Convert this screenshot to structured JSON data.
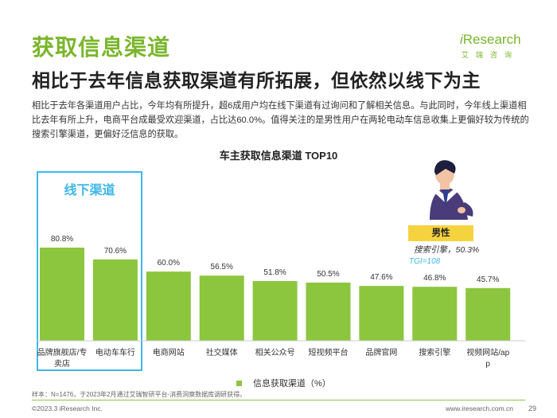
{
  "header": {
    "title": "获取信息渠道",
    "subtitle": "相比于去年信息获取渠道有所拓展，但依然以线下为主",
    "body": "相比于去年各渠道用户占比，今年均有所提升，超6成用户均在线下渠道有过询问和了解相关信息。与此同时，今年线上渠道相比去年有所上升，电商平台成最受欢迎渠道，占比达60.0%。值得关注的是男性用户在两轮电动车信息收集上更偏好较为传统的搜索引擎渠道，更偏好泛信息的获取。"
  },
  "logo": {
    "i_part": "i",
    "word_part": "Research",
    "chinese": "艾瑞咨询"
  },
  "callouts": {
    "offline_label": "线下渠道",
    "male_label": "男性",
    "male_stat": "搜索引擎，50.3%",
    "male_tgi": "TGI=108"
  },
  "footer": {
    "sample_note": "样本：N=1476，于2023年2月通过艾瑞智研平台-消费洞察数据库调研获得。",
    "copyright": "©2023.3 iResearch Inc.",
    "website": "www.iresearch.com.cn",
    "page_number": "29"
  },
  "colors": {
    "bar": "#8cc63e",
    "title_green": "#7ab62b",
    "highlight_blue": "#3fb8e8",
    "male_yellow": "#f5d33f"
  },
  "chart_data": {
    "type": "bar",
    "title": "车主获取信息渠道 TOP10",
    "categories": [
      "品牌旗舰店/专卖店",
      "电动车车行",
      "电商网站",
      "社交媒体",
      "相关公众号",
      "短视频平台",
      "品牌官网",
      "搜索引擎",
      "视频网站/app"
    ],
    "values": [
      80.8,
      70.6,
      60.0,
      56.5,
      51.8,
      50.5,
      47.6,
      46.8,
      45.7
    ],
    "value_labels": [
      "80.8%",
      "70.6%",
      "60.0%",
      "56.5%",
      "51.8%",
      "50.5%",
      "47.6%",
      "46.8%",
      "45.7%"
    ],
    "legend": "信息获取渠道（%）",
    "ylim": [
      0,
      100
    ],
    "xlabel": "",
    "ylabel": ""
  }
}
